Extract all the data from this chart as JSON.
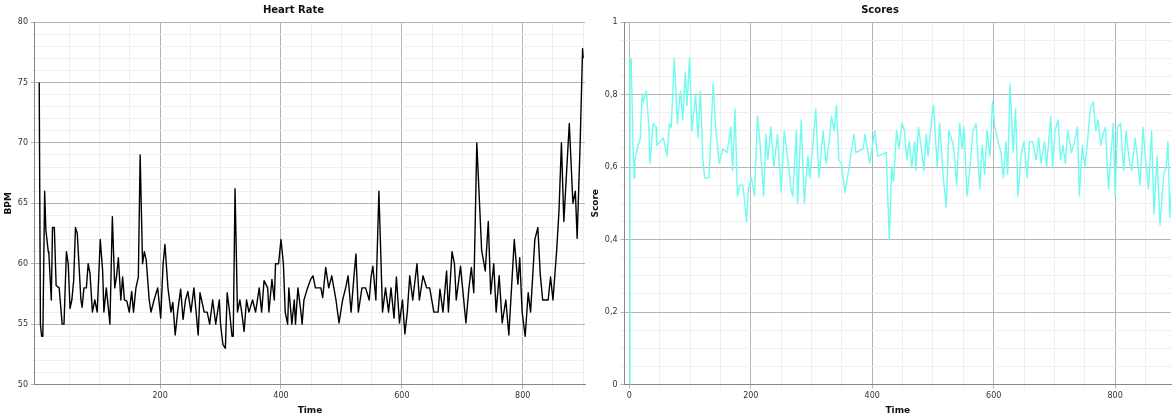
{
  "chart_data": [
    {
      "type": "line",
      "title": "Heart Rate",
      "xlabel": "Time",
      "ylabel": "BPM",
      "grid": true,
      "marker": "none",
      "line_style": "solid",
      "xlim": [
        -7,
        903
      ],
      "ylim": [
        50,
        80
      ],
      "xticks": [
        {
          "value": 50,
          "label": null
        },
        {
          "value": 100,
          "label": null
        },
        {
          "value": 150,
          "label": null
        },
        200,
        {
          "value": 250,
          "label": null
        },
        {
          "value": 300,
          "label": null
        },
        {
          "value": 350,
          "label": null
        },
        400,
        {
          "value": 450,
          "label": null
        },
        {
          "value": 500,
          "label": null
        },
        {
          "value": 550,
          "label": null
        },
        600,
        {
          "value": 650,
          "label": null
        },
        {
          "value": 700,
          "label": null
        },
        {
          "value": 750,
          "label": null
        },
        800,
        {
          "value": 850,
          "label": null
        },
        {
          "value": 900,
          "label": null
        }
      ],
      "yticks": [
        50,
        {
          "value": 51,
          "label": null
        },
        {
          "value": 52,
          "label": null
        },
        {
          "value": 53,
          "label": null
        },
        {
          "value": 54,
          "label": null
        },
        55,
        {
          "value": 56,
          "label": null
        },
        {
          "value": 57,
          "label": null
        },
        {
          "value": 58,
          "label": null
        },
        {
          "value": 59,
          "label": null
        },
        60,
        {
          "value": 61,
          "label": null
        },
        {
          "value": 62,
          "label": null
        },
        {
          "value": 63,
          "label": null
        },
        {
          "value": 64,
          "label": null
        },
        65,
        {
          "value": 66,
          "label": null
        },
        {
          "value": 67,
          "label": null
        },
        {
          "value": 68,
          "label": null
        },
        {
          "value": 69,
          "label": null
        },
        70,
        {
          "value": 71,
          "label": null
        },
        {
          "value": 72,
          "label": null
        },
        {
          "value": 73,
          "label": null
        },
        {
          "value": 74,
          "label": null
        },
        75,
        {
          "value": 76,
          "label": null
        },
        {
          "value": 77,
          "label": null
        },
        {
          "value": 78,
          "label": null
        },
        {
          "value": 79,
          "label": null
        },
        80
      ],
      "series": [
        {
          "color": "#000000",
          "x": [
            0,
            2,
            4,
            6,
            9,
            11,
            15,
            16,
            20,
            22,
            25,
            28,
            33,
            38,
            41,
            45,
            48,
            51,
            54,
            57,
            60,
            63,
            69,
            71,
            74,
            78,
            81,
            84,
            88,
            92,
            96,
            101,
            105,
            107,
            111,
            117,
            121,
            125,
            128,
            131,
            135,
            138,
            141,
            145,
            149,
            153,
            156,
            160,
            164,
            167,
            171,
            174,
            177,
            182,
            185,
            190,
            196,
            201,
            205,
            208,
            213,
            218,
            221,
            225,
            229,
            234,
            238,
            242,
            246,
            251,
            256,
            263,
            266,
            273,
            278,
            282,
            287,
            292,
            298,
            300,
            304,
            308,
            311,
            315,
            319,
            321,
            324,
            328,
            332,
            335,
            339,
            343,
            347,
            353,
            358,
            364,
            368,
            372,
            378,
            380,
            385,
            389,
            391,
            396,
            400,
            404,
            407,
            411,
            413,
            418,
            422,
            424,
            428,
            433,
            435,
            438,
            444,
            449,
            453,
            457,
            466,
            469,
            474,
            479,
            484,
            491,
            496,
            502,
            507,
            511,
            516,
            521,
            524,
            528,
            534,
            540,
            546,
            549,
            552,
            557,
            562,
            568,
            573,
            578,
            582,
            587,
            591,
            596,
            601,
            605,
            609,
            613,
            618,
            625,
            629,
            635,
            641,
            646,
            653,
            660,
            663,
            668,
            674,
            677,
            683,
            687,
            690,
            697,
            706,
            711,
            715,
            719,
            724,
            732,
            738,
            743,
            747,
            752,
            756,
            761,
            766,
            772,
            777,
            781,
            786,
            792,
            795,
            799,
            804,
            809,
            813,
            820,
            825,
            829,
            833,
            837,
            842,
            846,
            850,
            856,
            860,
            864,
            868,
            877,
            883,
            887,
            890,
            895,
            899,
            900
          ],
          "values": [
            75,
            55,
            54,
            54,
            66,
            62.8,
            61,
            60.8,
            57,
            63,
            63,
            58.2,
            58,
            55,
            55,
            61,
            60,
            56.3,
            57,
            58.6,
            63,
            62.5,
            57,
            56.4,
            58,
            58,
            60,
            59.2,
            56,
            57,
            56,
            62,
            59.4,
            56,
            58,
            55,
            63.9,
            58,
            59,
            60.5,
            57,
            58.9,
            57,
            56.9,
            56,
            57.7,
            56,
            58,
            58.9,
            69,
            60,
            61,
            60.3,
            57,
            56,
            57,
            58,
            55.5,
            60,
            61.6,
            58,
            56,
            56.8,
            54.1,
            56,
            57.9,
            55.4,
            57,
            57.7,
            56,
            58,
            54.1,
            57.6,
            56,
            56,
            55,
            57,
            55,
            57,
            55,
            53.3,
            53,
            57.6,
            56,
            54,
            54,
            66.2,
            56,
            57,
            56,
            54.4,
            57,
            56,
            57,
            56,
            58,
            56,
            58.6,
            58,
            56,
            58.7,
            57,
            60,
            60,
            62,
            60,
            56,
            55,
            58,
            55,
            57,
            55,
            58,
            56,
            55,
            57,
            58,
            58.7,
            59,
            58,
            58,
            57.2,
            59.7,
            58,
            59,
            57,
            55.1,
            57,
            58,
            59,
            56,
            59.1,
            60.8,
            56,
            58,
            58,
            57,
            58.9,
            59.8,
            57,
            66,
            56,
            58,
            56,
            58,
            55.5,
            58.9,
            55.1,
            57,
            54.2,
            56,
            59,
            57,
            60,
            57,
            59,
            58,
            58,
            56,
            56,
            57.9,
            56,
            59.4,
            56,
            61,
            60,
            57,
            59.8,
            55.1,
            58,
            59.7,
            57.6,
            70,
            61.1,
            59.4,
            63.5,
            57.5,
            60,
            56,
            59,
            55.1,
            57,
            54.1,
            57.6,
            62,
            58.3,
            60.5,
            56,
            54,
            57.6,
            56,
            62,
            63,
            59.1,
            57,
            57,
            57,
            58.9,
            57,
            61,
            64.4,
            70,
            63.5,
            71.6,
            65,
            66,
            62.1,
            70,
            77.8,
            77
          ]
        }
      ]
    },
    {
      "type": "line",
      "title": "Scores",
      "xlabel": "Time",
      "ylabel": "Score",
      "grid": true,
      "marker": "none",
      "line_style": "solid",
      "xlim": [
        -8,
        892
      ],
      "ylim": [
        0,
        1
      ],
      "xticks": [
        0,
        {
          "value": 50,
          "label": null
        },
        {
          "value": 100,
          "label": null
        },
        {
          "value": 150,
          "label": null
        },
        200,
        {
          "value": 250,
          "label": null
        },
        {
          "value": 300,
          "label": null
        },
        {
          "value": 350,
          "label": null
        },
        400,
        {
          "value": 450,
          "label": null
        },
        {
          "value": 500,
          "label": null
        },
        {
          "value": 550,
          "label": null
        },
        600,
        {
          "value": 650,
          "label": null
        },
        {
          "value": 700,
          "label": null
        },
        {
          "value": 750,
          "label": null
        },
        800,
        {
          "value": 850,
          "label": null
        }
      ],
      "yticks": [
        0,
        {
          "value": 0.05,
          "label": null
        },
        {
          "value": 0.1,
          "label": null
        },
        {
          "value": 0.15,
          "label": null
        },
        {
          "value": 0.2,
          "label": "0,2"
        },
        {
          "value": 0.25,
          "label": null
        },
        {
          "value": 0.3,
          "label": null
        },
        {
          "value": 0.35,
          "label": null
        },
        {
          "value": 0.4,
          "label": "0,4"
        },
        {
          "value": 0.45,
          "label": null
        },
        {
          "value": 0.5,
          "label": null
        },
        {
          "value": 0.55,
          "label": null
        },
        {
          "value": 0.6,
          "label": "0,6"
        },
        {
          "value": 0.65,
          "label": null
        },
        {
          "value": 0.7,
          "label": null
        },
        {
          "value": 0.75,
          "label": null
        },
        {
          "value": 0.8,
          "label": "0,8"
        },
        {
          "value": 0.85,
          "label": null
        },
        {
          "value": 0.9,
          "label": null
        },
        {
          "value": 0.95,
          "label": null
        },
        1
      ],
      "series": [
        {
          "color": "#6ffcf0",
          "x": [
            0,
            1,
            3,
            6,
            8,
            9,
            13,
            18,
            21,
            23,
            28,
            32,
            34,
            39,
            44,
            45,
            56,
            62,
            66,
            69,
            74,
            79,
            84,
            88,
            92,
            95,
            99,
            103,
            109,
            113,
            117,
            121,
            124,
            131,
            138,
            142,
            148,
            154,
            161,
            167,
            170,
            174,
            178,
            182,
            187,
            193,
            196,
            201,
            206,
            211,
            215,
            221,
            225,
            228,
            233,
            238,
            244,
            250,
            255,
            261,
            266,
            269,
            275,
            277,
            283,
            288,
            294,
            297,
            302,
            307,
            312,
            319,
            324,
            329,
            333,
            337,
            341,
            345,
            349,
            355,
            362,
            366,
            370,
            373,
            385,
            388,
            396,
            404,
            409,
            423,
            428,
            432,
            435,
            440,
            444,
            449,
            453,
            457,
            461,
            465,
            470,
            472,
            476,
            481,
            485,
            489,
            492,
            497,
            501,
            507,
            511,
            517,
            522,
            526,
            532,
            535,
            539,
            544,
            548,
            551,
            556,
            561,
            566,
            571,
            577,
            581,
            585,
            589,
            594,
            598,
            602,
            607,
            612,
            616,
            620,
            623,
            627,
            632,
            636,
            640,
            645,
            650,
            655,
            659,
            664,
            670,
            674,
            678,
            684,
            687,
            694,
            697,
            701,
            706,
            710,
            714,
            718,
            722,
            728,
            733,
            738,
            741,
            746,
            750,
            754,
            759,
            764,
            768,
            772,
            776,
            780,
            784,
            789,
            793,
            797,
            800,
            804,
            809,
            814,
            818,
            823,
            827,
            833,
            837,
            841,
            846,
            849,
            855,
            860,
            864,
            869,
            874,
            880,
            884,
            887,
            890,
            892
          ],
          "values": [
            0,
            0.89,
            0.9,
            0.66,
            0.57,
            0.62,
            0.65,
            0.68,
            0.8,
            0.78,
            0.81,
            0.71,
            0.61,
            0.72,
            0.71,
            0.66,
            0.68,
            0.63,
            0.72,
            0.71,
            0.9,
            0.72,
            0.81,
            0.73,
            0.86,
            0.77,
            0.9,
            0.7,
            0.8,
            0.68,
            0.81,
            0.62,
            0.57,
            0.57,
            0.83,
            0.71,
            0.61,
            0.65,
            0.64,
            0.71,
            0.59,
            0.76,
            0.52,
            0.55,
            0.55,
            0.45,
            0.54,
            0.57,
            0.52,
            0.74,
            0.67,
            0.52,
            0.69,
            0.62,
            0.71,
            0.6,
            0.69,
            0.53,
            0.7,
            0.62,
            0.54,
            0.52,
            0.7,
            0.5,
            0.73,
            0.5,
            0.63,
            0.57,
            0.66,
            0.76,
            0.57,
            0.7,
            0.61,
            0.67,
            0.74,
            0.7,
            0.77,
            0.62,
            0.61,
            0.53,
            0.6,
            0.65,
            0.69,
            0.64,
            0.65,
            0.69,
            0.61,
            0.7,
            0.63,
            0.64,
            0.4,
            0.6,
            0.56,
            0.7,
            0.65,
            0.72,
            0.7,
            0.62,
            0.67,
            0.6,
            0.67,
            0.59,
            0.71,
            0.65,
            0.59,
            0.69,
            0.63,
            0.72,
            0.77,
            0.6,
            0.72,
            0.57,
            0.49,
            0.7,
            0.67,
            0.64,
            0.55,
            0.72,
            0.65,
            0.71,
            0.52,
            0.6,
            0.7,
            0.72,
            0.54,
            0.66,
            0.58,
            0.7,
            0.63,
            0.78,
            0.71,
            0.67,
            0.64,
            0.57,
            0.67,
            0.58,
            0.83,
            0.64,
            0.76,
            0.52,
            0.63,
            0.67,
            0.57,
            0.67,
            0.67,
            0.62,
            0.68,
            0.61,
            0.67,
            0.6,
            0.74,
            0.6,
            0.7,
            0.73,
            0.62,
            0.66,
            0.61,
            0.7,
            0.64,
            0.67,
            0.71,
            0.52,
            0.66,
            0.6,
            0.66,
            0.76,
            0.78,
            0.7,
            0.73,
            0.66,
            0.69,
            0.71,
            0.54,
            0.63,
            0.72,
            0.52,
            0.71,
            0.72,
            0.59,
            0.7,
            0.62,
            0.59,
            0.68,
            0.62,
            0.55,
            0.71,
            0.64,
            0.54,
            0.7,
            0.47,
            0.63,
            0.44,
            0.58,
            0.6,
            0.67,
            0.46,
            0.53
          ]
        }
      ]
    }
  ]
}
